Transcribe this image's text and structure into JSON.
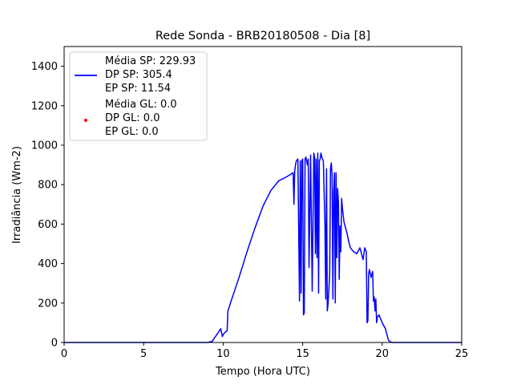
{
  "chart_data": {
    "type": "line",
    "title": "Rede Sonda - BRB20180508 - Dia [8]",
    "xlabel": "Tempo (Hora UTC)",
    "ylabel": "Irradiância (Wm-2)",
    "xlim": [
      0,
      25
    ],
    "ylim": [
      0,
      1500
    ],
    "xticks": [
      0,
      5,
      10,
      15,
      20,
      25
    ],
    "yticks": [
      0,
      200,
      400,
      600,
      800,
      1000,
      1200,
      1400
    ],
    "grid": false,
    "legend_position": "top-left",
    "legend": [
      {
        "name": "SP",
        "color": "#0000ff",
        "marker": "line",
        "lines": [
          "Média SP: 229.93",
          "DP SP: 305.4",
          "EP SP: 11.54"
        ]
      },
      {
        "name": "GL",
        "color": "#ff0000",
        "marker": "dot",
        "lines": [
          "Média GL: 0.0",
          "DP GL: 0.0",
          "EP GL: 0.0"
        ]
      }
    ],
    "series": [
      {
        "color": "#0000ff",
        "x": [
          0,
          9.0,
          9.3,
          9.6,
          9.85,
          9.95,
          10.0,
          10.1,
          10.25,
          10.3,
          10.5,
          11.0,
          11.5,
          12.0,
          12.5,
          13.0,
          13.5,
          14.0,
          14.2,
          14.4,
          14.45,
          14.5,
          14.55,
          14.6,
          14.7,
          14.8,
          14.85,
          14.9,
          14.95,
          15.0,
          15.05,
          15.1,
          15.15,
          15.2,
          15.25,
          15.3,
          15.35,
          15.4,
          15.5,
          15.6,
          15.7,
          15.75,
          15.8,
          15.85,
          15.9,
          15.95,
          16.0,
          16.05,
          16.1,
          16.15,
          16.2,
          16.3,
          16.4,
          16.45,
          16.5,
          16.55,
          16.6,
          16.7,
          16.75,
          16.8,
          16.85,
          16.9,
          16.95,
          17.0,
          17.05,
          17.1,
          17.15,
          17.2,
          17.25,
          17.3,
          17.35,
          17.4,
          17.45,
          17.5,
          17.6,
          17.7,
          17.8,
          17.9,
          18.0,
          18.2,
          18.4,
          18.6,
          18.8,
          18.9,
          19.0,
          19.05,
          19.1,
          19.15,
          19.2,
          19.3,
          19.4,
          19.45,
          19.5,
          19.55,
          19.6,
          19.65,
          19.7,
          19.8,
          19.9,
          20.0,
          20.2,
          20.4,
          20.6,
          20.8,
          21.0,
          25.0
        ],
        "y": [
          0,
          0,
          5,
          40,
          70,
          30,
          40,
          50,
          60,
          160,
          210,
          330,
          460,
          580,
          690,
          770,
          820,
          840,
          850,
          860,
          700,
          870,
          900,
          920,
          930,
          210,
          920,
          250,
          920,
          930,
          140,
          150,
          930,
          940,
          920,
          900,
          930,
          380,
          950,
          260,
          960,
          940,
          450,
          930,
          430,
          960,
          250,
          920,
          930,
          960,
          940,
          920,
          600,
          220,
          880,
          160,
          200,
          350,
          880,
          910,
          850,
          220,
          760,
          860,
          200,
          860,
          430,
          780,
          710,
          320,
          590,
          460,
          730,
          680,
          610,
          580,
          550,
          510,
          480,
          460,
          450,
          480,
          420,
          480,
          460,
          100,
          110,
          350,
          370,
          330,
          360,
          210,
          230,
          160,
          220,
          100,
          130,
          140,
          120,
          100,
          70,
          10,
          0,
          0,
          0,
          0
        ]
      },
      {
        "color": "#ff0000",
        "x": [],
        "y": []
      }
    ]
  }
}
